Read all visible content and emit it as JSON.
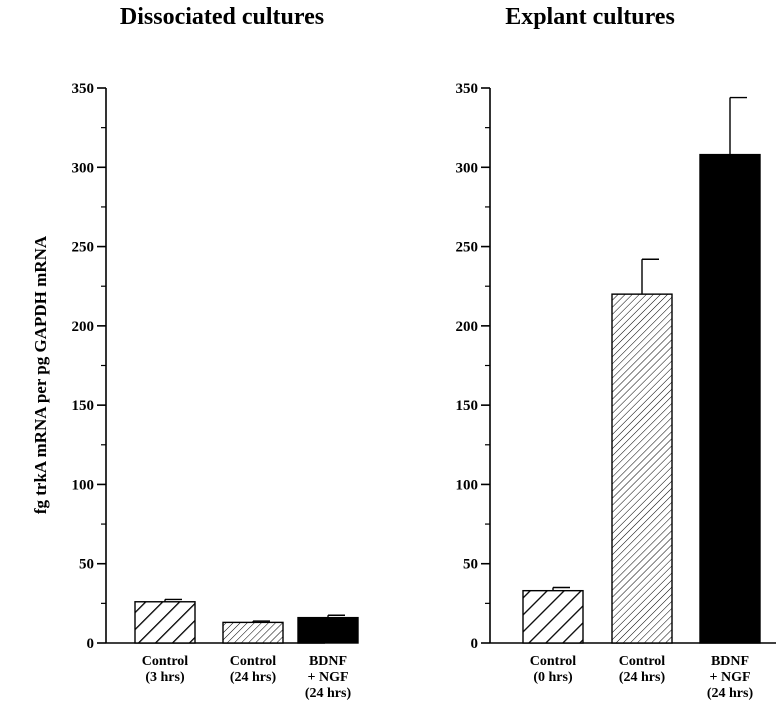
{
  "chart_data": [
    {
      "type": "bar",
      "title": "Dissociated cultures",
      "ylabel": "fg trkA mRNA per pg GAPDH mRNA",
      "ylim": [
        0,
        350
      ],
      "yticks": [
        "0",
        "50",
        "100",
        "150",
        "200",
        "250",
        "300",
        "350"
      ],
      "categories": [
        [
          "Control",
          "(3 hrs)"
        ],
        [
          "Control",
          "(24 hrs)"
        ],
        [
          "BDNF",
          "+ NGF",
          "(24 hrs)"
        ]
      ],
      "values": [
        26,
        13,
        16
      ],
      "errors": [
        1.5,
        0.8,
        1.5
      ],
      "fills": [
        "hatch-wide",
        "hatch-fine",
        "solid"
      ]
    },
    {
      "type": "bar",
      "title": "Explant cultures",
      "ylabel": "",
      "ylim": [
        0,
        350
      ],
      "yticks": [
        "0",
        "50",
        "100",
        "150",
        "200",
        "250",
        "300",
        "350"
      ],
      "categories": [
        [
          "Control",
          "(0 hrs)"
        ],
        [
          "Control",
          "(24 hrs)"
        ],
        [
          "BDNF",
          "+ NGF",
          "(24 hrs)"
        ]
      ],
      "values": [
        33,
        220,
        308
      ],
      "errors": [
        2,
        22,
        36
      ],
      "fills": [
        "hatch-wide",
        "hatch-fine",
        "solid"
      ]
    }
  ]
}
